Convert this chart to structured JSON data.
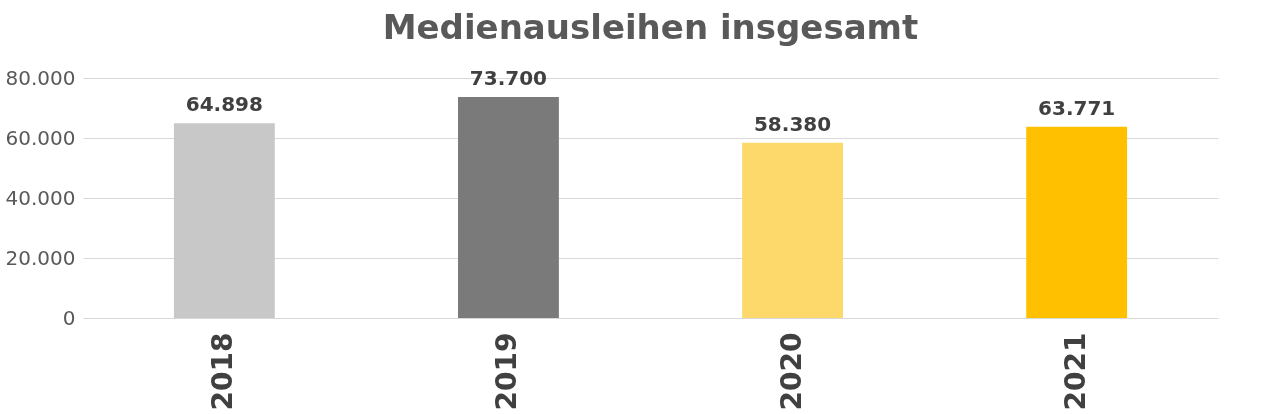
{
  "chart_data": {
    "type": "bar",
    "title": "Medienausleihen insgesamt",
    "categories": [
      "2018",
      "2019",
      "2020",
      "2021"
    ],
    "values": [
      64898,
      73700,
      58380,
      63771
    ],
    "colors": [
      "#c8c8c8",
      "#7a7a7a",
      "#fdd96b",
      "#ffc000"
    ],
    "value_labels": [
      "64.898",
      "73.700",
      "58.380",
      "63.771"
    ],
    "ylim": [
      0,
      80000
    ],
    "yticks": [
      0,
      {
        "value": 20000,
        "label": "20.000"
      },
      {
        "value": 40000,
        "label": "40.000"
      },
      {
        "value": 60000,
        "label": "60.000"
      },
      {
        "value": 80000,
        "label": "80.000"
      }
    ],
    "grid": "y"
  }
}
